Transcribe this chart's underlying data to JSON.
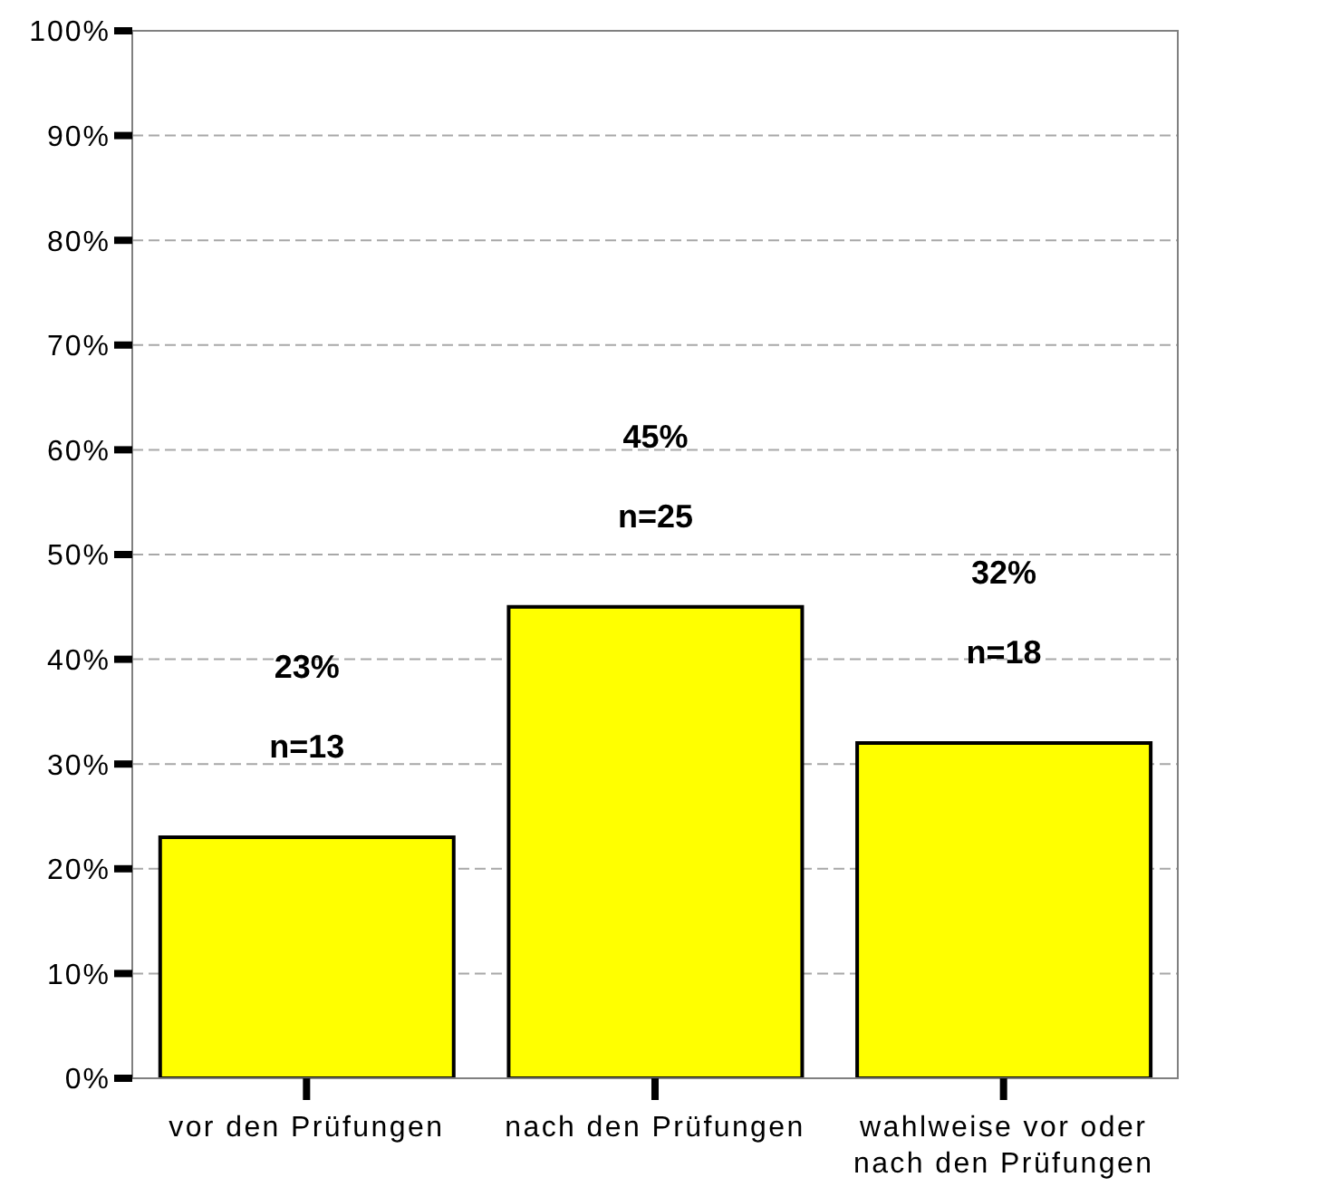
{
  "chart_data": {
    "type": "bar",
    "categories": [
      "vor den Prüfungen",
      "nach den Prüfungen",
      "wahlweise vor oder nach den Prüfungen"
    ],
    "values": [
      23,
      45,
      32
    ],
    "color": "#ffff00",
    "value_labels": [
      "23%\nn=13",
      "45%\nn=25",
      "32%\nn=18"
    ],
    "ylim": [
      0,
      100
    ],
    "yticks": [
      {
        "value": 0,
        "label": "0%"
      },
      {
        "value": 10,
        "label": "10%"
      },
      {
        "value": 20,
        "label": "20%"
      },
      {
        "value": 30,
        "label": "30%"
      },
      {
        "value": 40,
        "label": "40%"
      },
      {
        "value": 50,
        "label": "50%"
      },
      {
        "value": 60,
        "label": "60%"
      },
      {
        "value": 70,
        "label": "70%"
      },
      {
        "value": 80,
        "label": "80%"
      },
      {
        "value": 90,
        "label": "90%"
      },
      {
        "value": 100,
        "label": "100%"
      }
    ],
    "grid": "y"
  }
}
